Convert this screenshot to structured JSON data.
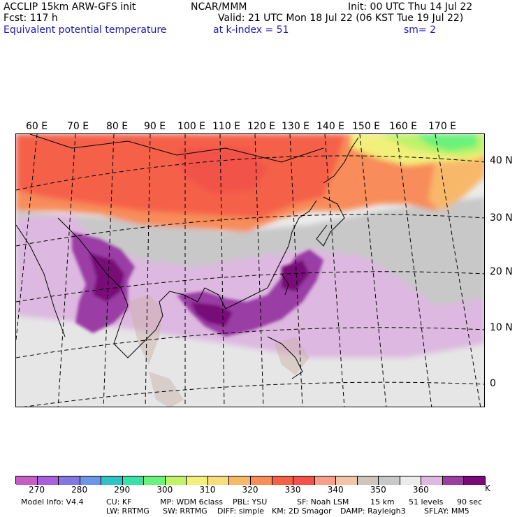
{
  "header": {
    "line1_left": "ACCLIP 15km ARW-GFS init",
    "line1_mid": "NCAR/MMM",
    "line1_right": "Init: 00 UTC Thu 14 Jul 22",
    "line2_left": "Fcst:  117 h",
    "line2_right": "Valid: 21 UTC Mon 18 Jul 22 (06 KST Tue 19 Jul 22)",
    "line3_left": "Equivalent potential temperature",
    "line3_mid": "at k-index =  51",
    "line3_right": "sm= 2"
  },
  "map": {
    "lon_labels": [
      "60 E",
      "70 E",
      "80 E",
      "90 E",
      "100 E",
      "110 E",
      "120 E",
      "130 E",
      "140 E",
      "150 E",
      "160 E",
      "170 E"
    ],
    "lat_labels": [
      "40 N",
      "30 N",
      "20 N",
      "10 N",
      "0"
    ]
  },
  "colorbar": {
    "colors": [
      "#c65cc6",
      "#a85fd9",
      "#8476e0",
      "#6f95e8",
      "#31c2c2",
      "#3ae0a8",
      "#6af27a",
      "#c0f26a",
      "#f2f07a",
      "#f9dd7a",
      "#f8b86a",
      "#f88c5a",
      "#f56048",
      "#f2524a",
      "#f8a08c",
      "#f2c4a8",
      "#cfc5bf",
      "#c8c8c8",
      "#ececec",
      "#ddb8e0",
      "#9a3ea4",
      "#780a78"
    ],
    "tick_labels": [
      "270",
      "280",
      "290",
      "300",
      "310",
      "320",
      "330",
      "340",
      "350",
      "360"
    ],
    "unit": "K"
  },
  "footer": {
    "row1": [
      "Model Info: V4.4",
      "CU: KF",
      "MP: WDM 6class",
      "PBL: YSU",
      "SF: Noah LSM",
      "15 km",
      "51 levels",
      "90 sec"
    ],
    "row2": [
      "LW: RRTMG",
      "SW: RRTMG",
      "DIFF: simple",
      "KM: 2D Smagor",
      "DAMP: Rayleigh3",
      "SFLAY: MM5"
    ]
  }
}
